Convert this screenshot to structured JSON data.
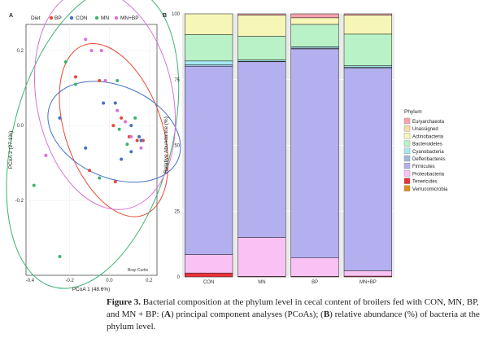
{
  "panelA": {
    "label": "A",
    "legend_title": "Diet",
    "groups": [
      {
        "name": "BP",
        "color": "#e64b35"
      },
      {
        "name": "CON",
        "color": "#4472c4"
      },
      {
        "name": "MN",
        "color": "#3cb371"
      },
      {
        "name": "MN+BP",
        "color": "#da70d6"
      }
    ],
    "xlabel": "PCoA 1 (48.6%)",
    "ylabel": "PCoA 2 (27.1%)",
    "annotation": "Bray-Curtis"
  },
  "panelB": {
    "label": "B",
    "legend_title": "Phylum",
    "ylabel": "Relative Abundance (%)",
    "yticks": [
      "0",
      "25",
      "50",
      "75",
      "100"
    ]
  },
  "chart_data": [
    {
      "type": "scatter",
      "title": "",
      "xlabel": "PCoA 1 (48.6%)",
      "ylabel": "PCoA 2 (27.1%)",
      "xlim": [
        -0.42,
        0.24
      ],
      "ylim": [
        -0.4,
        0.27
      ],
      "xticks": [
        -0.4,
        -0.2,
        0.0,
        0.2
      ],
      "yticks": [
        -0.2,
        0.0,
        0.2
      ],
      "series": [
        {
          "name": "BP",
          "color": "#e64b35",
          "points": [
            [
              -0.17,
              0.13
            ],
            [
              -0.05,
              0.12
            ],
            [
              0.02,
              0.0
            ],
            [
              0.06,
              0.02
            ],
            [
              0.1,
              -0.03
            ],
            [
              0.14,
              -0.04
            ],
            [
              0.17,
              -0.04
            ],
            [
              -0.1,
              -0.12
            ],
            [
              0.03,
              -0.15
            ]
          ]
        },
        {
          "name": "CON",
          "color": "#4472c4",
          "points": [
            [
              -0.25,
              0.02
            ],
            [
              -0.03,
              0.06
            ],
            [
              0.03,
              0.06
            ],
            [
              0.11,
              0.0
            ],
            [
              0.16,
              -0.04
            ],
            [
              -0.12,
              -0.06
            ],
            [
              0.11,
              -0.07
            ],
            [
              0.06,
              -0.09
            ],
            [
              0.15,
              -0.03
            ]
          ]
        },
        {
          "name": "MN",
          "color": "#3cb371",
          "points": [
            [
              -0.22,
              0.17
            ],
            [
              -0.17,
              0.11
            ],
            [
              0.04,
              0.12
            ],
            [
              0.13,
              0.02
            ],
            [
              0.05,
              -0.01
            ],
            [
              -0.05,
              -0.14
            ],
            [
              0.09,
              -0.05
            ],
            [
              -0.38,
              -0.16
            ],
            [
              -0.25,
              -0.35
            ]
          ]
        },
        {
          "name": "MN+BP",
          "color": "#da70d6",
          "points": [
            [
              -0.12,
              0.23
            ],
            [
              -0.09,
              0.2
            ],
            [
              -0.04,
              0.2
            ],
            [
              -0.02,
              0.12
            ],
            [
              0.04,
              0.04
            ],
            [
              0.08,
              0.01
            ],
            [
              0.11,
              -0.03
            ],
            [
              0.16,
              -0.06
            ],
            [
              -0.32,
              -0.08
            ]
          ]
        }
      ],
      "annotation": "Bray-Curtis"
    },
    {
      "type": "bar",
      "stacked": true,
      "title": "",
      "xlabel": "",
      "ylabel": "Relative Abundance (%)",
      "ylim": [
        0,
        100
      ],
      "categories": [
        "CON",
        "MN",
        "BP",
        "MN+BP"
      ],
      "series": [
        {
          "name": "Tenericutes",
          "color": "#e8323a",
          "values": [
            1.5,
            0.2,
            0.2,
            0.3
          ]
        },
        {
          "name": "Proteobacteria",
          "color": "#f9c1f4",
          "values": [
            7.0,
            14.8,
            7.0,
            2.0
          ]
        },
        {
          "name": "Firmicutes",
          "color": "#b4afee",
          "values": [
            71.6,
            66.8,
            79.5,
            77.1
          ]
        },
        {
          "name": "Defferibacteres",
          "color": "#9fb9dd",
          "values": [
            0.5,
            0.2,
            0.3,
            0.3
          ]
        },
        {
          "name": "Cyanobacteria",
          "color": "#a6e8f2",
          "values": [
            1.5,
            0.5,
            0.5,
            0.6
          ]
        },
        {
          "name": "Bacteroidetes",
          "color": "#b8f2c6",
          "values": [
            10.0,
            9.0,
            8.5,
            12.0
          ]
        },
        {
          "name": "Actinobacteria",
          "color": "#f6f7b6",
          "values": [
            7.9,
            8.0,
            2.5,
            7.2
          ]
        },
        {
          "name": "Euryarchaeota",
          "color": "#f5a3ad",
          "values": [
            0.0,
            0.5,
            1.5,
            0.5
          ]
        }
      ],
      "legend": [
        "Euryarchaeota",
        "Unassigned",
        "Actinobacteria",
        "Bacteroidetes",
        "Cyanobacteria",
        "Defferibacteres",
        "Firmicutes",
        "Proteobacteria",
        "Tenericutes",
        "Verrucomicrobia"
      ],
      "legend_colors": [
        "#f5a3ad",
        "#f5dca3",
        "#f6f7b6",
        "#b8f2c6",
        "#a6e8f2",
        "#9fb9dd",
        "#b4afee",
        "#f9c1f4",
        "#e8323a",
        "#e0901f"
      ]
    }
  ],
  "caption": {
    "label": "Figure 3.",
    "part1": "Bacterial composition at the phylum level in cecal content of broilers fed with CON, MN, BP, and MN + BP: (",
    "labelA": "A",
    "part2": ") principal component analyses (PCoAs); (",
    "labelB": "B",
    "part3": ") relative abundance (%) of bacteria at the phylum level."
  }
}
